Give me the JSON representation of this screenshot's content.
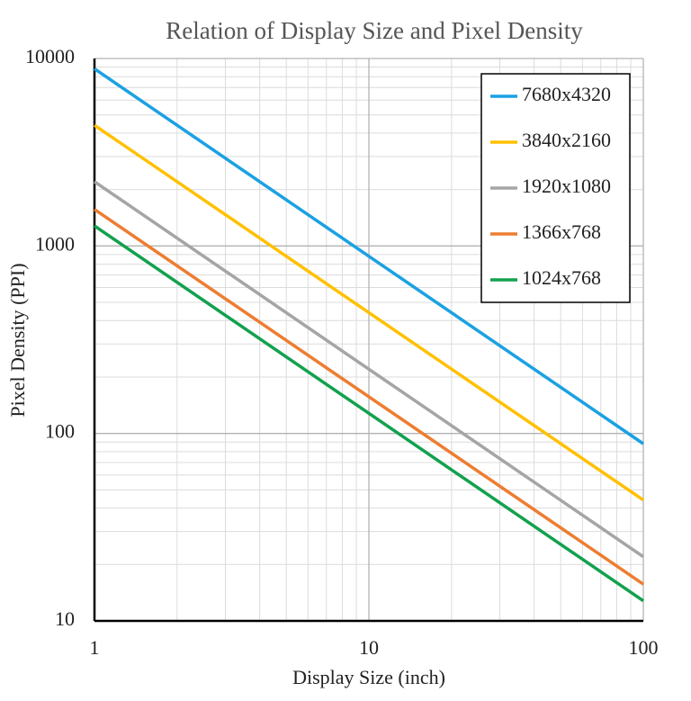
{
  "chart_data": {
    "type": "line",
    "title": "Relation of Display Size and Pixel Density",
    "x_label": "Display Size (inch)",
    "y_label": "Pixel Density (PPI)",
    "x": [
      1,
      100
    ],
    "series": [
      {
        "name": "7680x4320",
        "color": "#1ba1e2",
        "values": [
          8811,
          88.1
        ]
      },
      {
        "name": "3840x2160",
        "color": "#ffc000",
        "values": [
          4406,
          44.1
        ]
      },
      {
        "name": "1920x1080",
        "color": "#a5a5a5",
        "values": [
          2203,
          22.0
        ]
      },
      {
        "name": "1366x768",
        "color": "#ed7d31",
        "values": [
          1567,
          15.7
        ]
      },
      {
        "name": "1024x768",
        "color": "#13a14e",
        "values": [
          1280,
          12.8
        ]
      }
    ],
    "xlim": [
      1,
      100
    ],
    "xticks": [
      1,
      10,
      100
    ],
    "ylim": [
      10,
      10000
    ],
    "yticks": [
      10,
      100,
      1000,
      10000
    ],
    "log_x": true,
    "log_y": true,
    "grid": true,
    "minor_grid": true,
    "legend": "upper right"
  }
}
